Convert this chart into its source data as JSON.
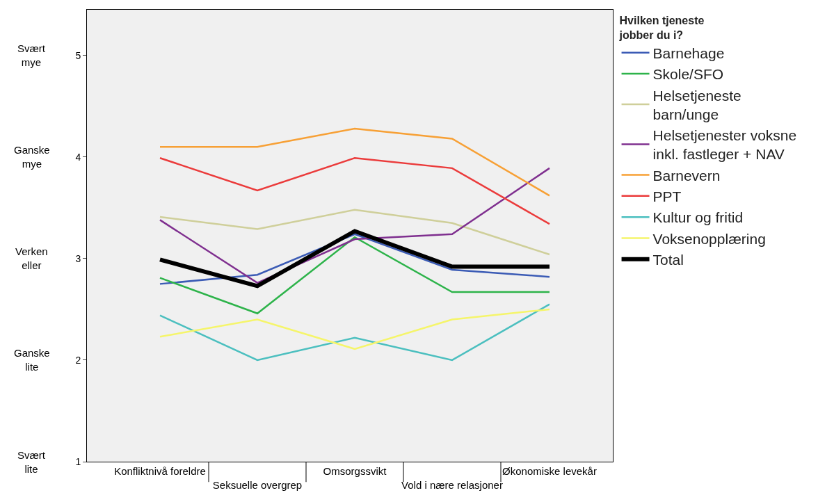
{
  "chart_data": {
    "type": "line",
    "legend_title": "Hvilken tjeneste jobber du i?",
    "legend": "right",
    "grid": false,
    "marker": "none",
    "line_style": "solid",
    "categories": [
      "Konfliktnivå foreldre",
      "Seksuelle overgrep",
      "Omsorgssvikt",
      "Vold i nære relasjoner",
      "Økonomiske levekår"
    ],
    "ylim": [
      1,
      5.45
    ],
    "yticks": [
      1,
      2,
      3,
      4,
      5
    ],
    "annotations": [
      "Svært mye",
      "Ganske mye",
      "Verken eller",
      "Ganske lite",
      "Svært lite"
    ],
    "series": [
      {
        "name": "Barnehage",
        "color": "#3b5bb5",
        "values": [
          2.75,
          2.84,
          3.24,
          2.89,
          2.82
        ]
      },
      {
        "name": "Skole/SFO",
        "color": "#2db34a",
        "values": [
          2.81,
          2.46,
          3.21,
          2.67,
          2.67
        ]
      },
      {
        "name": "Helsetjeneste barn/unge",
        "color": "#cfcf9a",
        "values": [
          3.41,
          3.29,
          3.48,
          3.35,
          3.04
        ]
      },
      {
        "name": "Helsetjenester voksne inkl. fastleger + NAV",
        "color": "#7f2f8f",
        "values": [
          3.38,
          2.76,
          3.19,
          3.24,
          3.89
        ]
      },
      {
        "name": "Barnevern",
        "color": "#f7a035",
        "values": [
          4.1,
          4.1,
          4.28,
          4.18,
          3.62
        ]
      },
      {
        "name": "PPT",
        "color": "#eb3b3b",
        "values": [
          3.99,
          3.67,
          3.99,
          3.89,
          3.34
        ]
      },
      {
        "name": "Kultur og fritid",
        "color": "#4bbfbf",
        "values": [
          2.44,
          2.0,
          2.22,
          2.0,
          2.55
        ]
      },
      {
        "name": "Voksenopplæring",
        "color": "#f5f56a",
        "values": [
          2.23,
          2.4,
          2.11,
          2.4,
          2.5
        ]
      },
      {
        "name": "Total",
        "color": "#000000",
        "values": [
          2.99,
          2.73,
          3.27,
          2.92,
          2.92
        ]
      }
    ]
  }
}
